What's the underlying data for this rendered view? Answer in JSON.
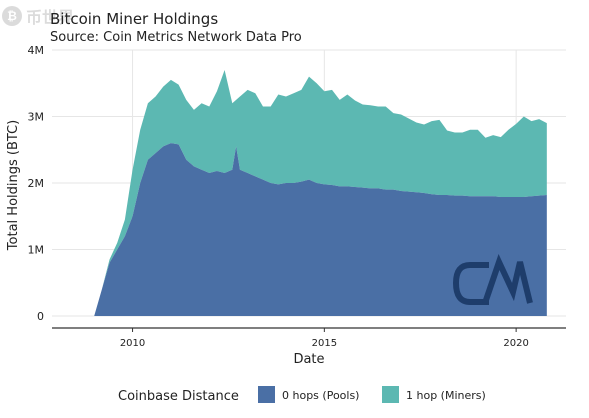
{
  "watermark": {
    "icon": "bitcoin-coin-icon",
    "text": "币世界"
  },
  "chart_data": {
    "type": "area",
    "title": "Bitcoin Miner Holdings",
    "subtitle": "Source: Coin Metrics Network Data Pro",
    "xlabel": "Date",
    "ylabel": "Total Holdings (BTC)",
    "xlim": [
      2007.9,
      2021.3
    ],
    "ylim": [
      0,
      4000000
    ],
    "x_ticks": [
      2010,
      2015,
      2020
    ],
    "x_tick_labels": [
      "2010",
      "2015",
      "2020"
    ],
    "y_ticks": [
      0,
      1000000,
      2000000,
      3000000,
      4000000
    ],
    "y_tick_labels": [
      "0",
      "1M",
      "2M",
      "3M",
      "4M"
    ],
    "grid": true,
    "stacked": true,
    "legend": {
      "title": "Coinbase Distance",
      "placement": "bottom"
    },
    "x": [
      2009.0,
      2009.2,
      2009.4,
      2009.6,
      2009.8,
      2010.0,
      2010.2,
      2010.4,
      2010.6,
      2010.8,
      2011.0,
      2011.2,
      2011.4,
      2011.6,
      2011.8,
      2012.0,
      2012.2,
      2012.4,
      2012.6,
      2012.7,
      2012.8,
      2013.0,
      2013.2,
      2013.4,
      2013.6,
      2013.8,
      2014.0,
      2014.2,
      2014.4,
      2014.6,
      2014.8,
      2015.0,
      2015.2,
      2015.4,
      2015.6,
      2015.8,
      2016.0,
      2016.2,
      2016.4,
      2016.6,
      2016.8,
      2017.0,
      2017.2,
      2017.4,
      2017.6,
      2017.8,
      2018.0,
      2018.2,
      2018.4,
      2018.6,
      2018.8,
      2019.0,
      2019.2,
      2019.4,
      2019.6,
      2019.8,
      2020.0,
      2020.2,
      2020.4,
      2020.6,
      2020.8
    ],
    "series": [
      {
        "name": "0 hops (Pools)",
        "color": "#4a6fa5",
        "values": [
          0,
          400000,
          800000,
          1000000,
          1200000,
          1500000,
          2000000,
          2350000,
          2450000,
          2550000,
          2600000,
          2580000,
          2350000,
          2250000,
          2200000,
          2150000,
          2180000,
          2150000,
          2200000,
          2550000,
          2200000,
          2150000,
          2100000,
          2050000,
          2000000,
          1980000,
          2000000,
          2000000,
          2020000,
          2050000,
          2000000,
          1980000,
          1970000,
          1950000,
          1950000,
          1940000,
          1930000,
          1920000,
          1920000,
          1900000,
          1900000,
          1880000,
          1870000,
          1860000,
          1850000,
          1830000,
          1820000,
          1820000,
          1810000,
          1810000,
          1800000,
          1800000,
          1800000,
          1800000,
          1790000,
          1790000,
          1790000,
          1790000,
          1800000,
          1810000,
          1820000
        ]
      },
      {
        "name": "1 hop (Miners)",
        "color": "#5cb8b2",
        "values": [
          0,
          0,
          50000,
          100000,
          250000,
          700000,
          800000,
          850000,
          850000,
          900000,
          950000,
          900000,
          900000,
          850000,
          1000000,
          1000000,
          1200000,
          1550000,
          1000000,
          700000,
          1100000,
          1250000,
          1250000,
          1100000,
          1150000,
          1350000,
          1300000,
          1350000,
          1380000,
          1550000,
          1500000,
          1400000,
          1430000,
          1300000,
          1380000,
          1300000,
          1250000,
          1250000,
          1230000,
          1250000,
          1150000,
          1150000,
          1100000,
          1050000,
          1030000,
          1100000,
          1130000,
          970000,
          950000,
          950000,
          1000000,
          1000000,
          880000,
          920000,
          900000,
          1010000,
          1100000,
          1210000,
          1130000,
          1150000,
          1080000
        ]
      }
    ]
  },
  "branding": {
    "logo_text": "CM"
  }
}
